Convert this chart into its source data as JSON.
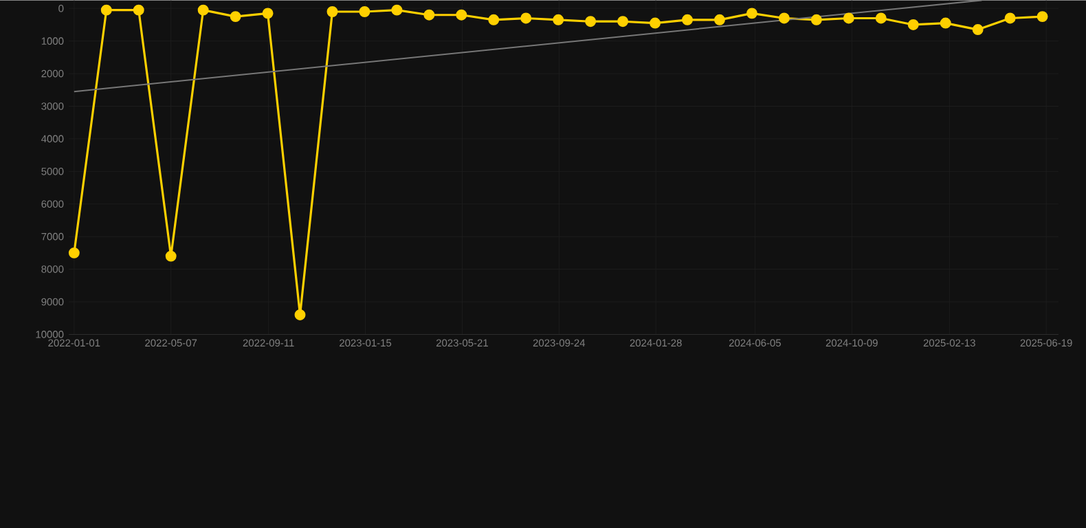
{
  "chart_data": {
    "type": "line",
    "x": [
      "2022-01-01",
      "2022-02-12",
      "2022-03-26",
      "2022-05-07",
      "2022-06-18",
      "2022-07-30",
      "2022-09-10",
      "2022-10-22",
      "2022-12-03",
      "2023-01-14",
      "2023-02-25",
      "2023-04-08",
      "2023-05-20",
      "2023-07-01",
      "2023-08-12",
      "2023-09-23",
      "2023-11-04",
      "2023-12-16",
      "2024-01-27",
      "2024-03-09",
      "2024-04-20",
      "2024-06-01",
      "2024-07-13",
      "2024-08-24",
      "2024-10-05",
      "2024-11-16",
      "2024-12-28",
      "2025-02-08",
      "2025-03-22",
      "2025-05-03",
      "2025-06-14"
    ],
    "series": [
      {
        "color": "#ffd000",
        "values": [
          7500,
          50,
          50,
          7600,
          50,
          250,
          150,
          9400,
          100,
          100,
          50,
          200,
          200,
          350,
          300,
          350,
          400,
          400,
          450,
          350,
          350,
          150,
          300,
          350,
          300,
          300,
          500,
          450,
          650,
          300,
          250
        ]
      },
      {
        "type": "line",
        "color": "#777777",
        "marker": "none",
        "x": [
          "2022-01-01",
          "2025-03-27"
        ],
        "values": [
          2550,
          -250
        ]
      }
    ],
    "xlim": [
      "2021-12-25",
      "2025-07-05"
    ],
    "ylim": [
      10000,
      -250
    ],
    "xticks": [
      "2022-01-01",
      "2022-05-07",
      "2022-09-11",
      "2023-01-15",
      "2023-05-21",
      "2023-09-24",
      "2024-01-28",
      "2024-06-05",
      "2024-10-09",
      "2025-02-13",
      "2025-06-19"
    ],
    "yticks": [
      0,
      1000,
      2000,
      3000,
      4000,
      5000,
      6000,
      7000,
      8000,
      9000,
      10000
    ],
    "grid": true,
    "marker": "circle",
    "line_style": "solid"
  }
}
